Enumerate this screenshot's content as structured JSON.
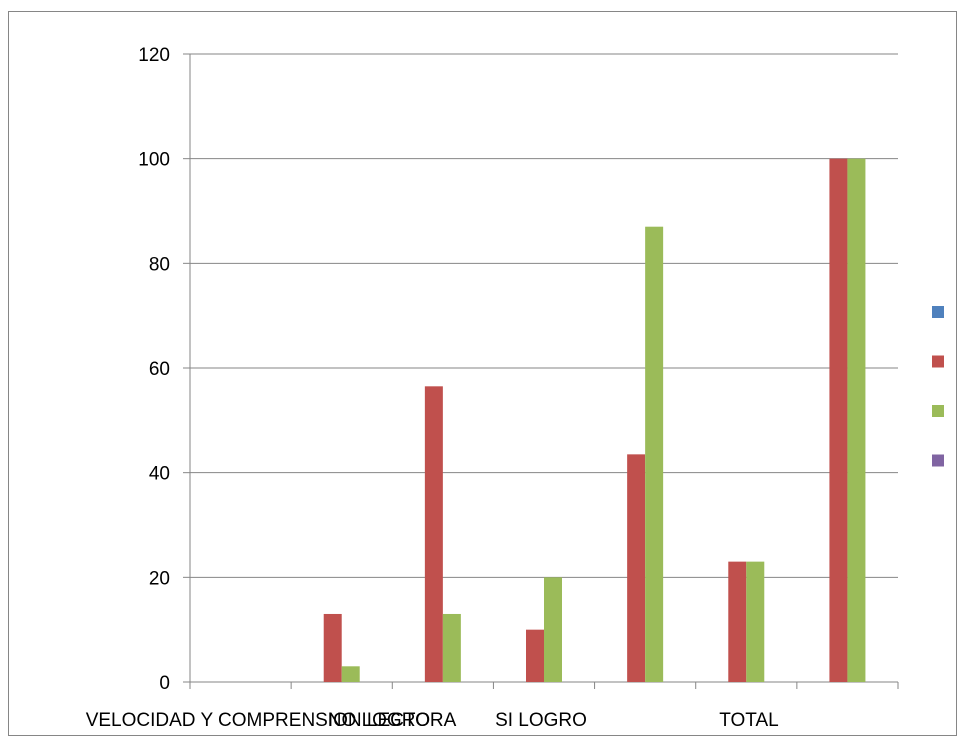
{
  "chart_data": {
    "type": "bar",
    "title": "",
    "xlabel": "",
    "ylabel": "",
    "ylim": [
      0,
      120
    ],
    "y_ticks": [
      0,
      20,
      40,
      60,
      80,
      100,
      120
    ],
    "grid": true,
    "legend_position": "right",
    "categories": [
      "",
      "",
      "",
      "",
      "",
      "",
      ""
    ],
    "x_tick_labels": [
      "VELOCIDAD Y COMPRENSION LECTORA",
      "NO LOGRO",
      "SI LOGRO",
      "TOTAL"
    ],
    "series": [
      {
        "color": "#4F81BD",
        "values": [
          0,
          0,
          0,
          0,
          0,
          0,
          0
        ]
      },
      {
        "color": "#C0504D",
        "values": [
          0,
          13,
          56.5,
          10,
          43.5,
          23,
          100
        ]
      },
      {
        "color": "#9BBB59",
        "values": [
          0,
          3,
          13,
          20,
          87,
          23,
          100
        ]
      },
      {
        "color": "#8064A2",
        "values": [
          0,
          0,
          0,
          0,
          0,
          0,
          0
        ]
      }
    ]
  }
}
